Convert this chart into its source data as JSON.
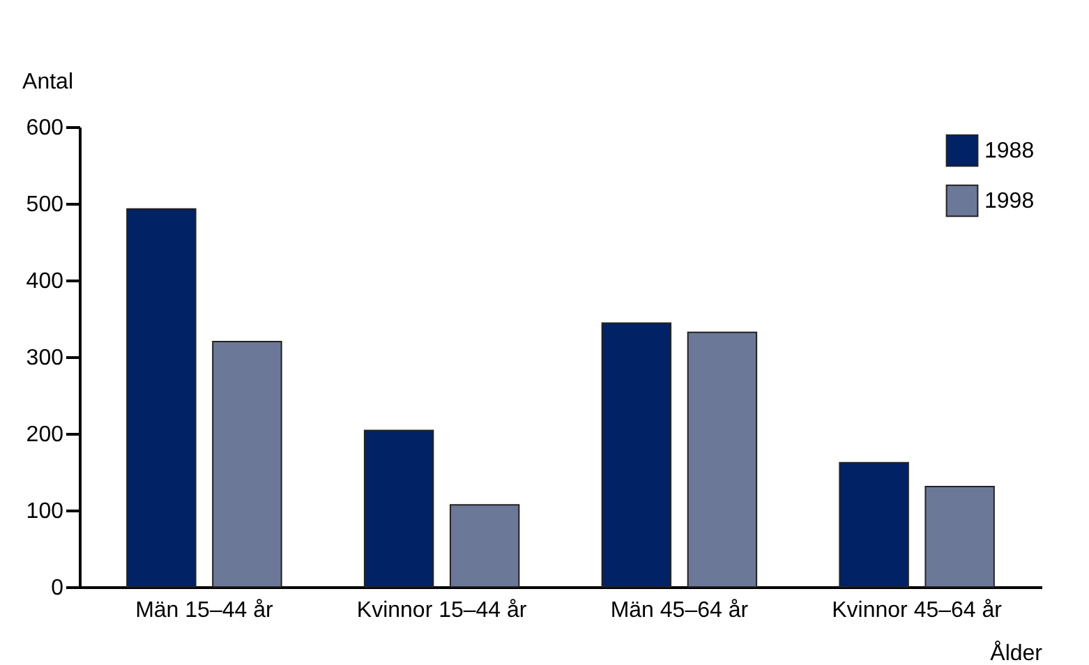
{
  "chart_data": {
    "type": "bar",
    "xlabel": "Ålder",
    "ylabel": "Antal",
    "categories": [
      "Män 15–44 år",
      "Kvinnor 15–44 år",
      "Män 45–64 år",
      "Kvinnor 45–64 år"
    ],
    "series": [
      {
        "name": "1988",
        "color": "#022266",
        "values": [
          493,
          204,
          344,
          162
        ]
      },
      {
        "name": "1998",
        "color": "#6b7898",
        "values": [
          320,
          107,
          332,
          131
        ]
      }
    ],
    "ylim": [
      0,
      600
    ],
    "yticks": [
      0,
      100,
      200,
      300,
      400,
      500,
      600
    ],
    "grid": false,
    "legend": "top right"
  }
}
